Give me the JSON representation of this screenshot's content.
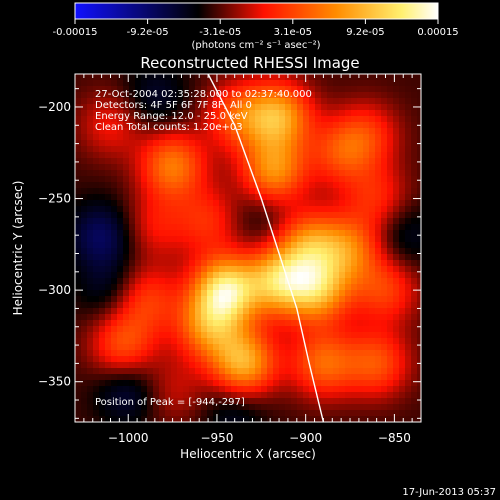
{
  "colorbar": {
    "ticks": [
      "-0.00015",
      "-9.2e-05",
      "-3.1e-05",
      "3.1e-05",
      "9.2e-05",
      "0.00015"
    ],
    "unit": "(photons cm⁻² s⁻¹ asec⁻²)",
    "colormap": [
      "#1010ff",
      "#000000",
      "#ff1000",
      "#ff8c00",
      "#fff070",
      "#ffffff"
    ]
  },
  "info_lines": [
    "27-Oct-2004 02:35:28.000 to 02:37:40.000",
    "Detectors: 4F 5F 6F 7F 8F, All 0",
    "Energy Range: 12.0 - 25.0 keV",
    "Clean     Total counts: 1.20e+03"
  ],
  "peak_label": "Position of Peak = [-944,-297]",
  "footer_date": "17-Jun-2013 05:37",
  "chart_data": {
    "type": "heatmap",
    "title": "Reconstructed RHESSI Image",
    "xlabel": "Heliocentric X (arcsec)",
    "ylabel": "Heliocentric Y (arcsec)",
    "xlim": [
      -1030,
      -835
    ],
    "ylim": [
      -372,
      -182
    ],
    "x_ticks": [
      -1000,
      -950,
      -900,
      -850
    ],
    "y_ticks": [
      -350,
      -300,
      -250,
      -200
    ],
    "x_tick_labels": [
      "−1000",
      "−950",
      "−900",
      "−850"
    ],
    "y_tick_labels": [
      "−350",
      "−300",
      "−250",
      "−200"
    ],
    "vmin": -0.00015,
    "vmax": 0.00015,
    "peak": [
      -944,
      -297
    ],
    "limb": [
      [
        -955,
        -182
      ],
      [
        -940,
        -210
      ],
      [
        -925,
        -250
      ],
      [
        -915,
        -280
      ],
      [
        -905,
        -310
      ],
      [
        -898,
        -340
      ],
      [
        -890,
        -372
      ]
    ],
    "blobs": [
      {
        "x": -975,
        "y": -232,
        "v": 9e-05
      },
      {
        "x": -918,
        "y": -235,
        "v": 0.0001
      },
      {
        "x": -915,
        "y": -205,
        "v": 0.00011
      },
      {
        "x": -938,
        "y": -205,
        "v": 7e-05
      },
      {
        "x": -880,
        "y": -225,
        "v": 6e-05
      },
      {
        "x": -865,
        "y": -215,
        "v": 5e-05
      },
      {
        "x": -945,
        "y": -300,
        "v": 0.00015
      },
      {
        "x": -915,
        "y": -295,
        "v": 0.00012
      },
      {
        "x": -893,
        "y": -300,
        "v": 0.00011
      },
      {
        "x": -898,
        "y": -275,
        "v": 9e-05
      },
      {
        "x": -875,
        "y": -278,
        "v": 8e-05
      },
      {
        "x": -935,
        "y": -340,
        "v": 0.00012
      },
      {
        "x": -955,
        "y": -320,
        "v": 9e-05
      },
      {
        "x": -890,
        "y": -340,
        "v": 8e-05
      },
      {
        "x": -860,
        "y": -340,
        "v": 7e-05
      },
      {
        "x": -855,
        "y": -300,
        "v": 6e-05
      },
      {
        "x": -990,
        "y": -305,
        "v": 6e-05
      },
      {
        "x": -1003,
        "y": -330,
        "v": 7e-05
      },
      {
        "x": -985,
        "y": -265,
        "v": 4e-05
      },
      {
        "x": -955,
        "y": -262,
        "v": 5e-05
      },
      {
        "x": -860,
        "y": -250,
        "v": 5e-05
      },
      {
        "x": -1010,
        "y": -210,
        "v": 4e-05
      },
      {
        "x": -975,
        "y": -355,
        "v": 3e-05
      },
      {
        "x": -1015,
        "y": -270,
        "v": -5e-05
      },
      {
        "x": -1000,
        "y": -355,
        "v": -4e-05
      },
      {
        "x": -1010,
        "y": -300,
        "v": -3e-05
      },
      {
        "x": -940,
        "y": -365,
        "v": -3e-05
      },
      {
        "x": -985,
        "y": -195,
        "v": -3e-05
      },
      {
        "x": -845,
        "y": -270,
        "v": -3e-05
      },
      {
        "x": -925,
        "y": -260,
        "v": -2e-05
      }
    ]
  }
}
